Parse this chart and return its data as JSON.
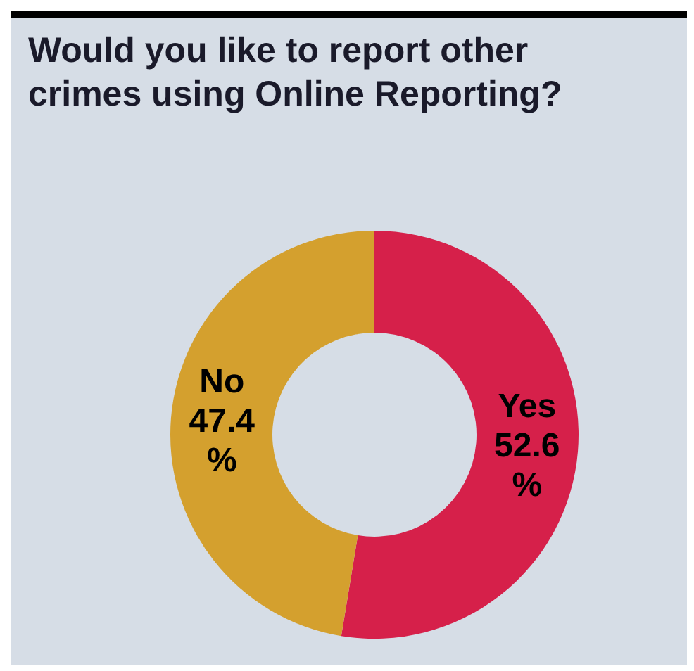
{
  "chart_data": {
    "type": "donut",
    "title": "Would you like to report other crimes using Online Reporting?",
    "categories": [
      "Yes",
      "No"
    ],
    "values": [
      52.6,
      47.4
    ],
    "colors": [
      "#d6204a",
      "#d4a02e"
    ],
    "value_labels": [
      "52.6 %",
      "47.4 %"
    ],
    "legend": false
  }
}
